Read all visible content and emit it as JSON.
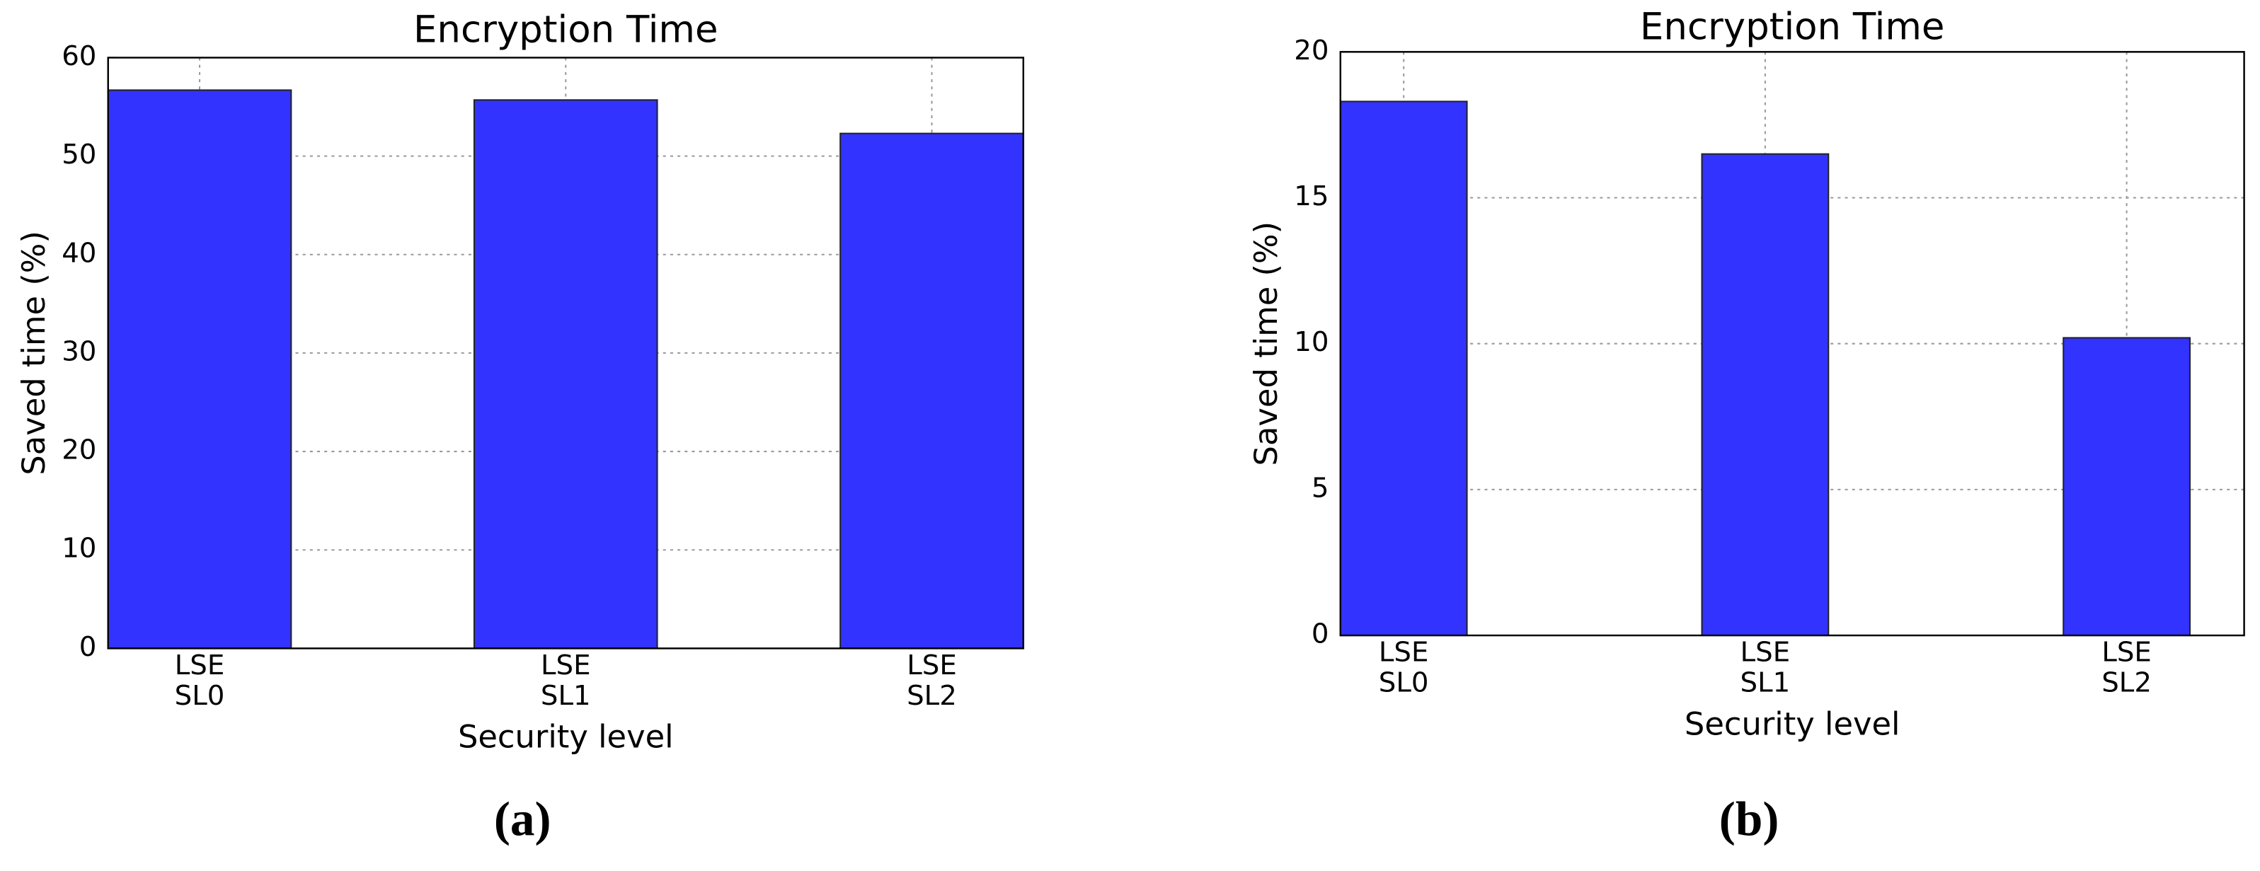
{
  "chart_data": [
    {
      "type": "bar",
      "title": "Encryption Time",
      "x_label": "Security level",
      "y_label": "Saved time (%)",
      "caption": "(a)",
      "categories": [
        "LSE\nSL0",
        "LSE\nSL1",
        "LSE\nSL2"
      ],
      "values": [
        56.7,
        55.7,
        52.3
      ],
      "color": "#3333ff",
      "ylim": [
        0,
        60
      ],
      "yticks": [
        0,
        10,
        20,
        30,
        40,
        50,
        60
      ],
      "grid": true
    },
    {
      "type": "bar",
      "title": "Encryption Time",
      "x_label": "Security level",
      "y_label": "Saved time (%)",
      "caption": "(b)",
      "categories": [
        "LSE\nSL0",
        "LSE\nSL1",
        "LSE\nSL2"
      ],
      "values": [
        18.3,
        16.5,
        10.2
      ],
      "color": "#3333ff",
      "ylim": [
        0,
        20
      ],
      "yticks": [
        0,
        5,
        10,
        15,
        20
      ],
      "grid": true
    }
  ]
}
